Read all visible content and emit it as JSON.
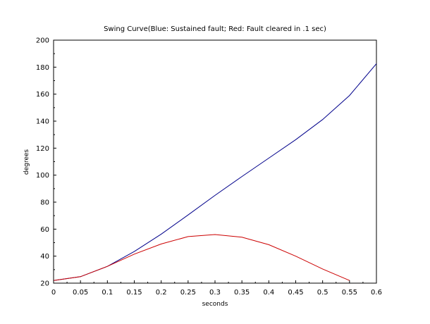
{
  "chart_data": {
    "type": "line",
    "title": "Swing Curve(Blue: Sustained fault; Red: Fault cleared in .1 sec)",
    "xlabel": "seconds",
    "ylabel": "degrees",
    "xlim": [
      0,
      0.6
    ],
    "ylim": [
      20,
      200
    ],
    "xticks": [
      "0",
      "0.05",
      "0.1",
      "0.15",
      "0.2",
      "0.25",
      "0.3",
      "0.35",
      "0.4",
      "0.45",
      "0.5",
      "0.55",
      "0.6"
    ],
    "yticks": [
      "20",
      "40",
      "60",
      "80",
      "100",
      "120",
      "140",
      "160",
      "180",
      "200"
    ],
    "grid": false,
    "legend": "none",
    "series": [
      {
        "color": "#00008b",
        "x": [
          0,
          0.05,
          0.1,
          0.15,
          0.2,
          0.25,
          0.3,
          0.35,
          0.4,
          0.45,
          0.5,
          0.55,
          0.6
        ],
        "y": [
          22,
          24.8,
          32.4,
          43.4,
          56.3,
          70.5,
          85.0,
          99.0,
          112.6,
          126.3,
          141.2,
          159.0,
          182.6
        ]
      },
      {
        "color": "#cc0000",
        "x": [
          0,
          0.05,
          0.1,
          0.15,
          0.2,
          0.25,
          0.3,
          0.35,
          0.4,
          0.45,
          0.5,
          0.55
        ],
        "y": [
          22,
          24.8,
          32.4,
          41.5,
          49.0,
          54.5,
          56.0,
          54.0,
          48.5,
          40.0,
          30.5,
          22.0
        ]
      }
    ]
  }
}
